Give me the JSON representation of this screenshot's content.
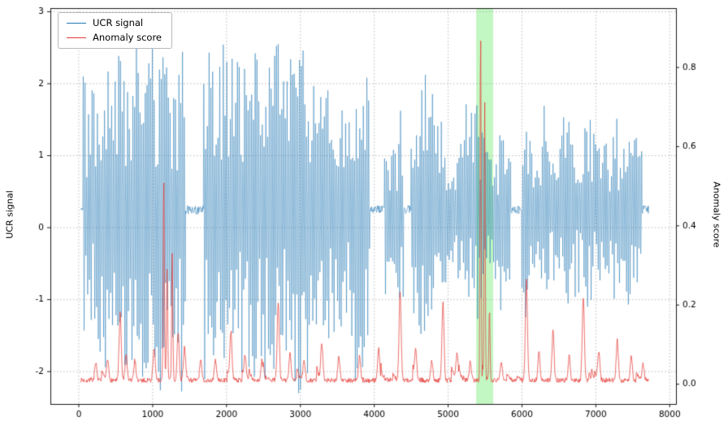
{
  "chart_data": {
    "type": "line",
    "title": "",
    "xlabel": "",
    "ylabel_left": "UCR signal",
    "ylabel_right": "Anomaly score",
    "xlim": [
      -385,
      8085
    ],
    "ylim_left": [
      -2.45,
      3.05
    ],
    "ylim_right": [
      -0.05,
      0.95
    ],
    "x_ticks": [
      0,
      1000,
      2000,
      3000,
      4000,
      5000,
      6000,
      7000,
      8000
    ],
    "y_ticks_left": [
      -2,
      -1,
      0,
      1,
      2,
      3
    ],
    "y_ticks_right": {
      "values": [
        0,
        0.2,
        0.4,
        0.6,
        0.8
      ],
      "labels": [
        "0.0",
        "0.2",
        "0.4",
        "0.6",
        "0.8"
      ]
    },
    "grid": true,
    "grid_style": "dotted",
    "grid_color": "#aaaaaa",
    "legend": {
      "position": "upper-left",
      "entries": [
        {
          "label": "UCR signal",
          "color": "#1f77b4"
        },
        {
          "label": "Anomaly score",
          "color": "#e53935"
        }
      ]
    },
    "highlight_region": {
      "x_start": 5380,
      "x_end": 5610,
      "color": "#90ee90",
      "alpha": 0.55
    },
    "series": [
      {
        "name": "UCR signal",
        "axis": "left",
        "color": "#1f77b4",
        "style": "dense oscillating bursts around a flat baseline",
        "baseline": 0.25,
        "x_start": 30,
        "x_end": 7720,
        "burst_segments": [
          [
            55,
            1440
          ],
          [
            1690,
            3940
          ],
          [
            4140,
            4395
          ],
          [
            4495,
            5845
          ],
          [
            5995,
            7625
          ]
        ],
        "value_max": 2.82,
        "value_min": -2.3
      },
      {
        "name": "Anomaly score",
        "axis": "right",
        "color": "#e53935",
        "baseline": 0.01,
        "x_start": 30,
        "x_end": 7720,
        "spikes": [
          {
            "x": 230,
            "h": 0.04
          },
          {
            "x": 390,
            "h": 0.05
          },
          {
            "x": 560,
            "h": 0.17
          },
          {
            "x": 640,
            "h": 0.06
          },
          {
            "x": 760,
            "h": 0.05
          },
          {
            "x": 1020,
            "h": 0.08
          },
          {
            "x": 1150,
            "h": 0.5,
            "w": 8
          },
          {
            "x": 1195,
            "h": 0.28,
            "w": 8
          },
          {
            "x": 1265,
            "h": 0.32,
            "w": 8
          },
          {
            "x": 1345,
            "h": 0.12
          },
          {
            "x": 1430,
            "h": 0.07
          },
          {
            "x": 1650,
            "h": 0.05
          },
          {
            "x": 1850,
            "h": 0.05
          },
          {
            "x": 2060,
            "h": 0.12
          },
          {
            "x": 2250,
            "h": 0.06
          },
          {
            "x": 2480,
            "h": 0.05
          },
          {
            "x": 2700,
            "h": 0.2
          },
          {
            "x": 2860,
            "h": 0.07
          },
          {
            "x": 3050,
            "h": 0.05
          },
          {
            "x": 3290,
            "h": 0.09
          },
          {
            "x": 3520,
            "h": 0.06
          },
          {
            "x": 3800,
            "h": 0.06
          },
          {
            "x": 4060,
            "h": 0.08
          },
          {
            "x": 4350,
            "h": 0.22
          },
          {
            "x": 4560,
            "h": 0.07
          },
          {
            "x": 4780,
            "h": 0.05
          },
          {
            "x": 4930,
            "h": 0.2
          },
          {
            "x": 5120,
            "h": 0.07
          },
          {
            "x": 5300,
            "h": 0.05
          },
          {
            "x": 5440,
            "h": 0.89,
            "w": 7
          },
          {
            "x": 5495,
            "h": 0.7,
            "w": 7
          },
          {
            "x": 5560,
            "h": 0.18,
            "w": 8
          },
          {
            "x": 5720,
            "h": 0.05
          },
          {
            "x": 6060,
            "h": 0.25
          },
          {
            "x": 6230,
            "h": 0.07
          },
          {
            "x": 6420,
            "h": 0.12
          },
          {
            "x": 6640,
            "h": 0.06
          },
          {
            "x": 6830,
            "h": 0.21
          },
          {
            "x": 7040,
            "h": 0.07
          },
          {
            "x": 7290,
            "h": 0.1
          },
          {
            "x": 7480,
            "h": 0.06
          },
          {
            "x": 7640,
            "h": 0.04
          }
        ]
      }
    ]
  }
}
